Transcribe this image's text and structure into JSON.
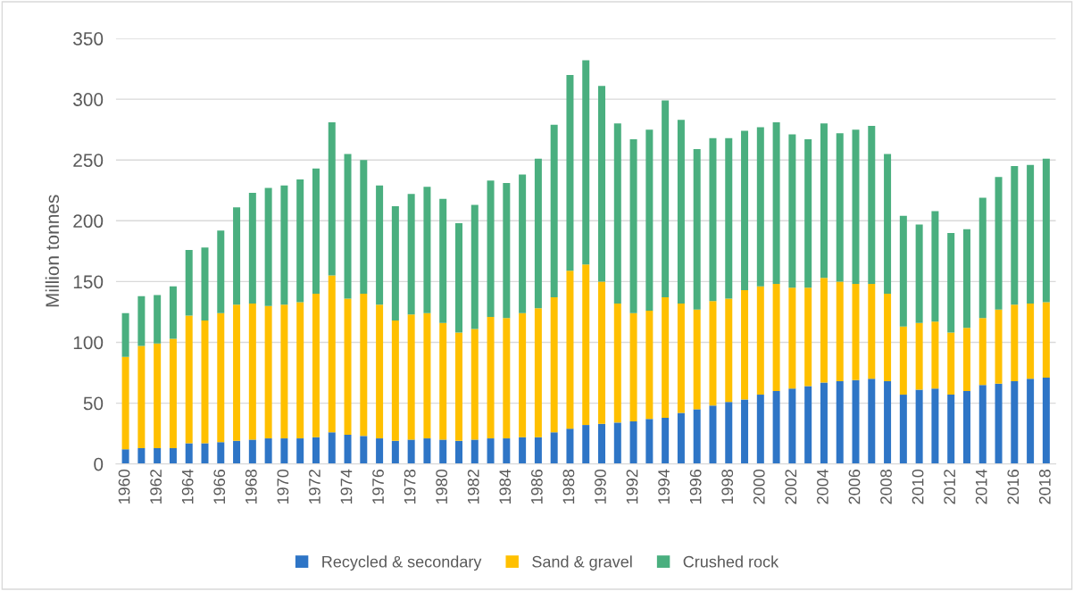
{
  "chart_data": {
    "type": "bar",
    "stacked": true,
    "ylabel": "Million tonnes",
    "categories": [
      "1960",
      null,
      "1962",
      null,
      "1964",
      null,
      "1966",
      null,
      "1968",
      null,
      "1970",
      null,
      "1972",
      null,
      "1974",
      null,
      "1976",
      null,
      "1978",
      null,
      "1980",
      null,
      "1982",
      null,
      "1984",
      null,
      "1986",
      null,
      "1988",
      null,
      "1990",
      null,
      "1992",
      null,
      "1994",
      null,
      "1996",
      null,
      "1998",
      null,
      "2000",
      null,
      "2002",
      null,
      "2004",
      null,
      "2006",
      null,
      "2008",
      null,
      "2010",
      null,
      "2012",
      null,
      "2014",
      null,
      "2016",
      null,
      "2018"
    ],
    "series": [
      {
        "name": "Recycled & secondary",
        "color": "#2e75c6",
        "values": [
          12,
          13,
          13,
          13,
          17,
          17,
          18,
          19,
          20,
          21,
          21,
          21,
          22,
          26,
          24,
          23,
          21,
          19,
          20,
          21,
          20,
          19,
          20,
          21,
          21,
          22,
          22,
          26,
          29,
          32,
          33,
          34,
          35,
          37,
          38,
          42,
          45,
          48,
          51,
          53,
          57,
          60,
          62,
          64,
          67,
          68,
          69,
          70,
          68,
          57,
          61,
          62,
          57,
          60,
          65,
          66,
          68,
          70,
          71
        ]
      },
      {
        "name": "Sand & gravel",
        "color": "#ffc000",
        "values": [
          76,
          84,
          86,
          90,
          105,
          101,
          106,
          112,
          112,
          109,
          110,
          112,
          118,
          129,
          112,
          117,
          110,
          99,
          103,
          103,
          96,
          89,
          91,
          100,
          99,
          102,
          106,
          111,
          130,
          132,
          117,
          98,
          89,
          89,
          99,
          90,
          82,
          86,
          85,
          90,
          89,
          88,
          83,
          81,
          86,
          82,
          79,
          78,
          72,
          56,
          55,
          55,
          51,
          52,
          55,
          61,
          63,
          62,
          62
        ]
      },
      {
        "name": "Crushed rock",
        "color": "#4aaf7f",
        "values": [
          36,
          41,
          40,
          43,
          54,
          60,
          68,
          80,
          91,
          97,
          98,
          101,
          103,
          126,
          119,
          110,
          98,
          94,
          99,
          104,
          102,
          90,
          102,
          112,
          111,
          114,
          123,
          142,
          161,
          168,
          161,
          148,
          143,
          149,
          162,
          151,
          132,
          134,
          132,
          131,
          131,
          133,
          126,
          122,
          127,
          122,
          127,
          130,
          115,
          91,
          81,
          91,
          82,
          81,
          99,
          109,
          114,
          114,
          118
        ]
      }
    ],
    "ylim": [
      0,
      350
    ],
    "yticks": [
      0,
      50,
      100,
      150,
      200,
      250,
      300,
      350
    ],
    "grid": "y",
    "legend": "bottom"
  }
}
